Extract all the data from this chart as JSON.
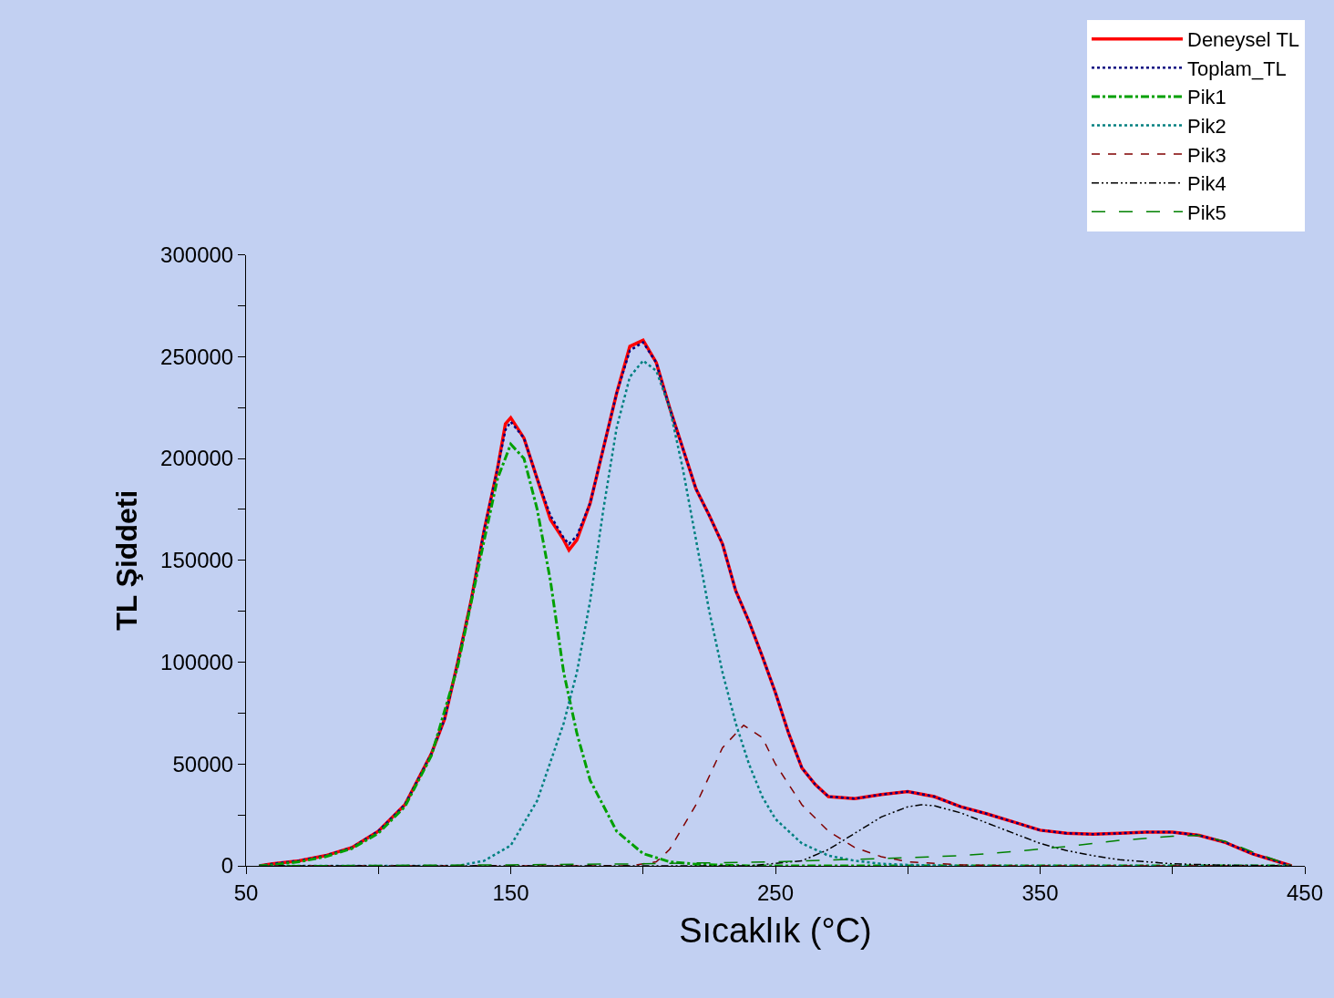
{
  "chart_data": {
    "type": "line",
    "xlabel": "Sıcaklık (°C)",
    "ylabel": "TL Şiddeti",
    "xlim": [
      50,
      450
    ],
    "ylim": [
      0,
      300000
    ],
    "xticks": [
      50,
      {
        "value": 100,
        "label": null
      },
      150,
      {
        "value": 200,
        "label": null
      },
      250,
      {
        "value": 300,
        "label": null
      },
      350,
      {
        "value": 400,
        "label": null
      },
      450
    ],
    "yticks": [
      0,
      {
        "value": 25000,
        "label": null
      },
      50000,
      {
        "value": 75000,
        "label": null
      },
      100000,
      {
        "value": 125000,
        "label": null
      },
      150000,
      {
        "value": 175000,
        "label": null
      },
      200000,
      {
        "value": 225000,
        "label": null
      },
      250000,
      {
        "value": 275000,
        "label": null
      },
      300000
    ],
    "grid": false,
    "legend": "top right",
    "marker": "none",
    "series": [
      {
        "name": "Deneysel TL",
        "color": "#ff0000",
        "line_style": "solid",
        "x": [
          55,
          60,
          70,
          80,
          90,
          100,
          110,
          120,
          125,
          130,
          135,
          140,
          145,
          148,
          150,
          155,
          160,
          165,
          170,
          172,
          175,
          180,
          185,
          190,
          195,
          200,
          205,
          210,
          215,
          220,
          225,
          230,
          235,
          240,
          245,
          250,
          255,
          260,
          265,
          270,
          280,
          290,
          300,
          310,
          320,
          330,
          340,
          350,
          360,
          370,
          380,
          390,
          400,
          410,
          420,
          430,
          445
        ],
        "values": [
          0,
          1000,
          2500,
          5000,
          9000,
          17000,
          30000,
          55000,
          72000,
          100000,
          130000,
          165000,
          195000,
          217000,
          220000,
          210000,
          190000,
          170000,
          160000,
          155000,
          160000,
          178000,
          205000,
          232000,
          255000,
          258000,
          247000,
          225000,
          205000,
          185000,
          172000,
          158000,
          135000,
          120000,
          103000,
          85000,
          65000,
          48000,
          40000,
          34000,
          33000,
          35000,
          36500,
          34000,
          29000,
          25500,
          21500,
          17500,
          16000,
          15500,
          16000,
          16500,
          16500,
          15000,
          11500,
          6000,
          0
        ]
      },
      {
        "name": "Toplam_TL",
        "color": "#000080",
        "line_style": "dotted",
        "x": [
          55,
          60,
          70,
          80,
          90,
          100,
          110,
          120,
          125,
          130,
          135,
          140,
          145,
          148,
          150,
          155,
          160,
          165,
          170,
          172,
          175,
          180,
          185,
          190,
          195,
          200,
          205,
          210,
          215,
          220,
          225,
          230,
          235,
          240,
          245,
          250,
          255,
          260,
          265,
          270,
          280,
          290,
          300,
          310,
          320,
          330,
          340,
          350,
          360,
          370,
          380,
          390,
          400,
          410,
          420,
          430,
          445
        ],
        "values": [
          0,
          1000,
          2500,
          5000,
          9000,
          17000,
          30000,
          55000,
          72000,
          100000,
          130000,
          165000,
          195000,
          214000,
          218000,
          210000,
          190000,
          172000,
          161000,
          158000,
          162000,
          178000,
          205000,
          232000,
          253000,
          257000,
          247000,
          225000,
          205000,
          185000,
          172000,
          158000,
          135000,
          120000,
          103000,
          85000,
          65000,
          48000,
          40000,
          34000,
          33000,
          35000,
          36500,
          34000,
          29000,
          25500,
          21500,
          17500,
          16000,
          15500,
          16000,
          16500,
          16500,
          15000,
          11500,
          6000,
          0
        ]
      },
      {
        "name": "Pik1",
        "color": "#00a000",
        "line_style": "dashdot",
        "x": [
          55,
          60,
          70,
          80,
          90,
          100,
          110,
          120,
          130,
          140,
          145,
          150,
          155,
          160,
          165,
          170,
          175,
          180,
          190,
          200,
          210,
          220,
          240,
          445
        ],
        "values": [
          0,
          500,
          2000,
          4500,
          8500,
          16000,
          29000,
          54000,
          98000,
          160000,
          190000,
          207000,
          200000,
          175000,
          140000,
          95000,
          65000,
          42000,
          17000,
          6000,
          2000,
          800,
          0,
          0
        ]
      },
      {
        "name": "Pik2",
        "color": "#008080",
        "line_style": "dotted",
        "x": [
          55,
          130,
          140,
          150,
          160,
          170,
          175,
          180,
          185,
          190,
          195,
          200,
          205,
          210,
          215,
          220,
          225,
          230,
          235,
          240,
          245,
          250,
          260,
          270,
          280,
          290,
          300,
          320,
          445
        ],
        "values": [
          0,
          0,
          2500,
          10000,
          32000,
          70000,
          95000,
          130000,
          175000,
          215000,
          240000,
          248000,
          243000,
          225000,
          195000,
          160000,
          125000,
          95000,
          70000,
          50000,
          34000,
          23000,
          11000,
          5000,
          2500,
          1000,
          500,
          0,
          0
        ]
      },
      {
        "name": "Pik3",
        "color": "#800000",
        "line_style": "dashed",
        "x": [
          55,
          195,
          205,
          210,
          220,
          230,
          238,
          245,
          250,
          260,
          270,
          280,
          290,
          300,
          320,
          340,
          445
        ],
        "values": [
          0,
          0,
          2000,
          8000,
          30000,
          58000,
          69000,
          63000,
          50000,
          30000,
          17000,
          9000,
          4500,
          2000,
          500,
          0,
          0
        ]
      },
      {
        "name": "Pik4",
        "color": "#000000",
        "line_style": "dashdotdot",
        "x": [
          55,
          240,
          260,
          270,
          280,
          290,
          300,
          305,
          310,
          320,
          330,
          340,
          350,
          360,
          370,
          380,
          400,
          420,
          445
        ],
        "values": [
          0,
          0,
          2500,
          8000,
          16000,
          24000,
          29000,
          30000,
          29500,
          26000,
          21000,
          16000,
          11000,
          7500,
          5000,
          3000,
          1000,
          300,
          0
        ]
      },
      {
        "name": "Pik5",
        "color": "#008000",
        "line_style": "longdashed",
        "x": [
          55,
          150,
          200,
          250,
          300,
          320,
          340,
          360,
          380,
          400,
          410,
          420,
          430,
          445
        ],
        "values": [
          0,
          500,
          1000,
          2000,
          4000,
          5000,
          7000,
          9500,
          12500,
          14500,
          15000,
          12000,
          7000,
          0
        ]
      }
    ]
  }
}
